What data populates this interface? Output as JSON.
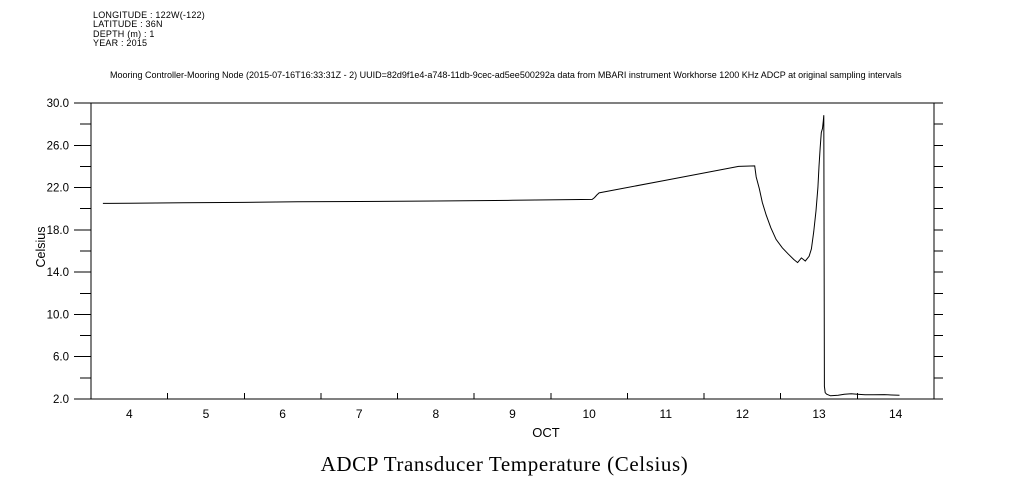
{
  "header": {
    "longitude": "LONGITUDE : 122W(-122)",
    "latitude": "LATITUDE : 36N",
    "depth": "DEPTH (m) : 1",
    "year": "YEAR : 2015"
  },
  "subtitle": "Mooring Controller-Mooring Node (2015-07-16T16:33:31Z - 2) UUID=82d9f1e4-a748-11db-9cec-ad5ee500292a data from MBARI instrument Workhorse 1200 KHz ADCP at original sampling intervals",
  "title": "ADCP Transducer Temperature (Celsius)",
  "chart_data": {
    "type": "line",
    "title": "ADCP Transducer Temperature (Celsius)",
    "xlabel": "OCT",
    "ylabel": "Celsius",
    "xlim": [
      3.5,
      14.5
    ],
    "ylim": [
      2.0,
      30.0
    ],
    "x_ticks": [
      3.5,
      4.5,
      5.5,
      6.5,
      7.5,
      8.5,
      9.5,
      10.5,
      11.5,
      12.5,
      13.5,
      14.5
    ],
    "x_label_positions": [
      4,
      5,
      6,
      7,
      8,
      9,
      10,
      11,
      12,
      13,
      14
    ],
    "x_tick_labels": [
      "4",
      "5",
      "6",
      "7",
      "8",
      "9",
      "10",
      "11",
      "12",
      "13",
      "14"
    ],
    "y_major_ticks": [
      2,
      6,
      10,
      14,
      18,
      22,
      26,
      30
    ],
    "y_tick_labels": [
      "2.0",
      "6.0",
      "10.0",
      "14.0",
      "18.0",
      "22.0",
      "26.0",
      "30.0"
    ],
    "y_minor_ticks": [
      4,
      8,
      12,
      16,
      20,
      24,
      28
    ],
    "right_side_ticks": [
      2,
      4,
      6,
      8,
      10,
      12,
      14,
      16,
      18,
      20,
      22,
      24,
      26,
      28,
      30
    ],
    "grid": false,
    "legend": false,
    "line_color": "#000000",
    "background": "#ffffff",
    "series": [
      {
        "name": "ADCP transducer temperature (Celsius)",
        "points": [
          [
            3.655,
            20.5
          ],
          [
            3.75,
            20.5
          ],
          [
            4.0,
            20.52
          ],
          [
            4.7,
            20.56
          ],
          [
            5.5,
            20.6
          ],
          [
            6.2,
            20.65
          ],
          [
            7.0,
            20.68
          ],
          [
            8.0,
            20.73
          ],
          [
            9.0,
            20.8
          ],
          [
            9.6,
            20.85
          ],
          [
            10.04,
            20.88
          ],
          [
            10.07,
            21.05
          ],
          [
            10.1,
            21.3
          ],
          [
            10.13,
            21.5
          ],
          [
            11.0,
            22.7
          ],
          [
            11.95,
            24.0
          ],
          [
            12.16,
            24.05
          ],
          [
            12.18,
            23.0
          ],
          [
            12.22,
            21.9
          ],
          [
            12.26,
            20.6
          ],
          [
            12.31,
            19.4
          ],
          [
            12.37,
            18.2
          ],
          [
            12.44,
            17.1
          ],
          [
            12.52,
            16.3
          ],
          [
            12.6,
            15.7
          ],
          [
            12.67,
            15.2
          ],
          [
            12.72,
            14.9
          ],
          [
            12.77,
            15.35
          ],
          [
            12.82,
            15.05
          ],
          [
            12.87,
            15.5
          ],
          [
            12.9,
            16.2
          ],
          [
            12.93,
            17.8
          ],
          [
            12.96,
            19.8
          ],
          [
            12.985,
            22.0
          ],
          [
            13.0,
            24.0
          ],
          [
            13.015,
            25.8
          ],
          [
            13.03,
            27.2
          ],
          [
            13.045,
            27.6
          ],
          [
            13.055,
            28.3
          ],
          [
            13.062,
            28.85
          ],
          [
            13.07,
            3.2
          ],
          [
            13.08,
            2.6
          ],
          [
            13.1,
            2.45
          ],
          [
            13.15,
            2.3
          ],
          [
            13.25,
            2.35
          ],
          [
            13.33,
            2.45
          ],
          [
            13.42,
            2.5
          ],
          [
            13.5,
            2.45
          ],
          [
            13.6,
            2.4
          ],
          [
            13.72,
            2.4
          ],
          [
            13.85,
            2.42
          ],
          [
            13.95,
            2.38
          ],
          [
            14.05,
            2.35
          ]
        ]
      }
    ]
  }
}
